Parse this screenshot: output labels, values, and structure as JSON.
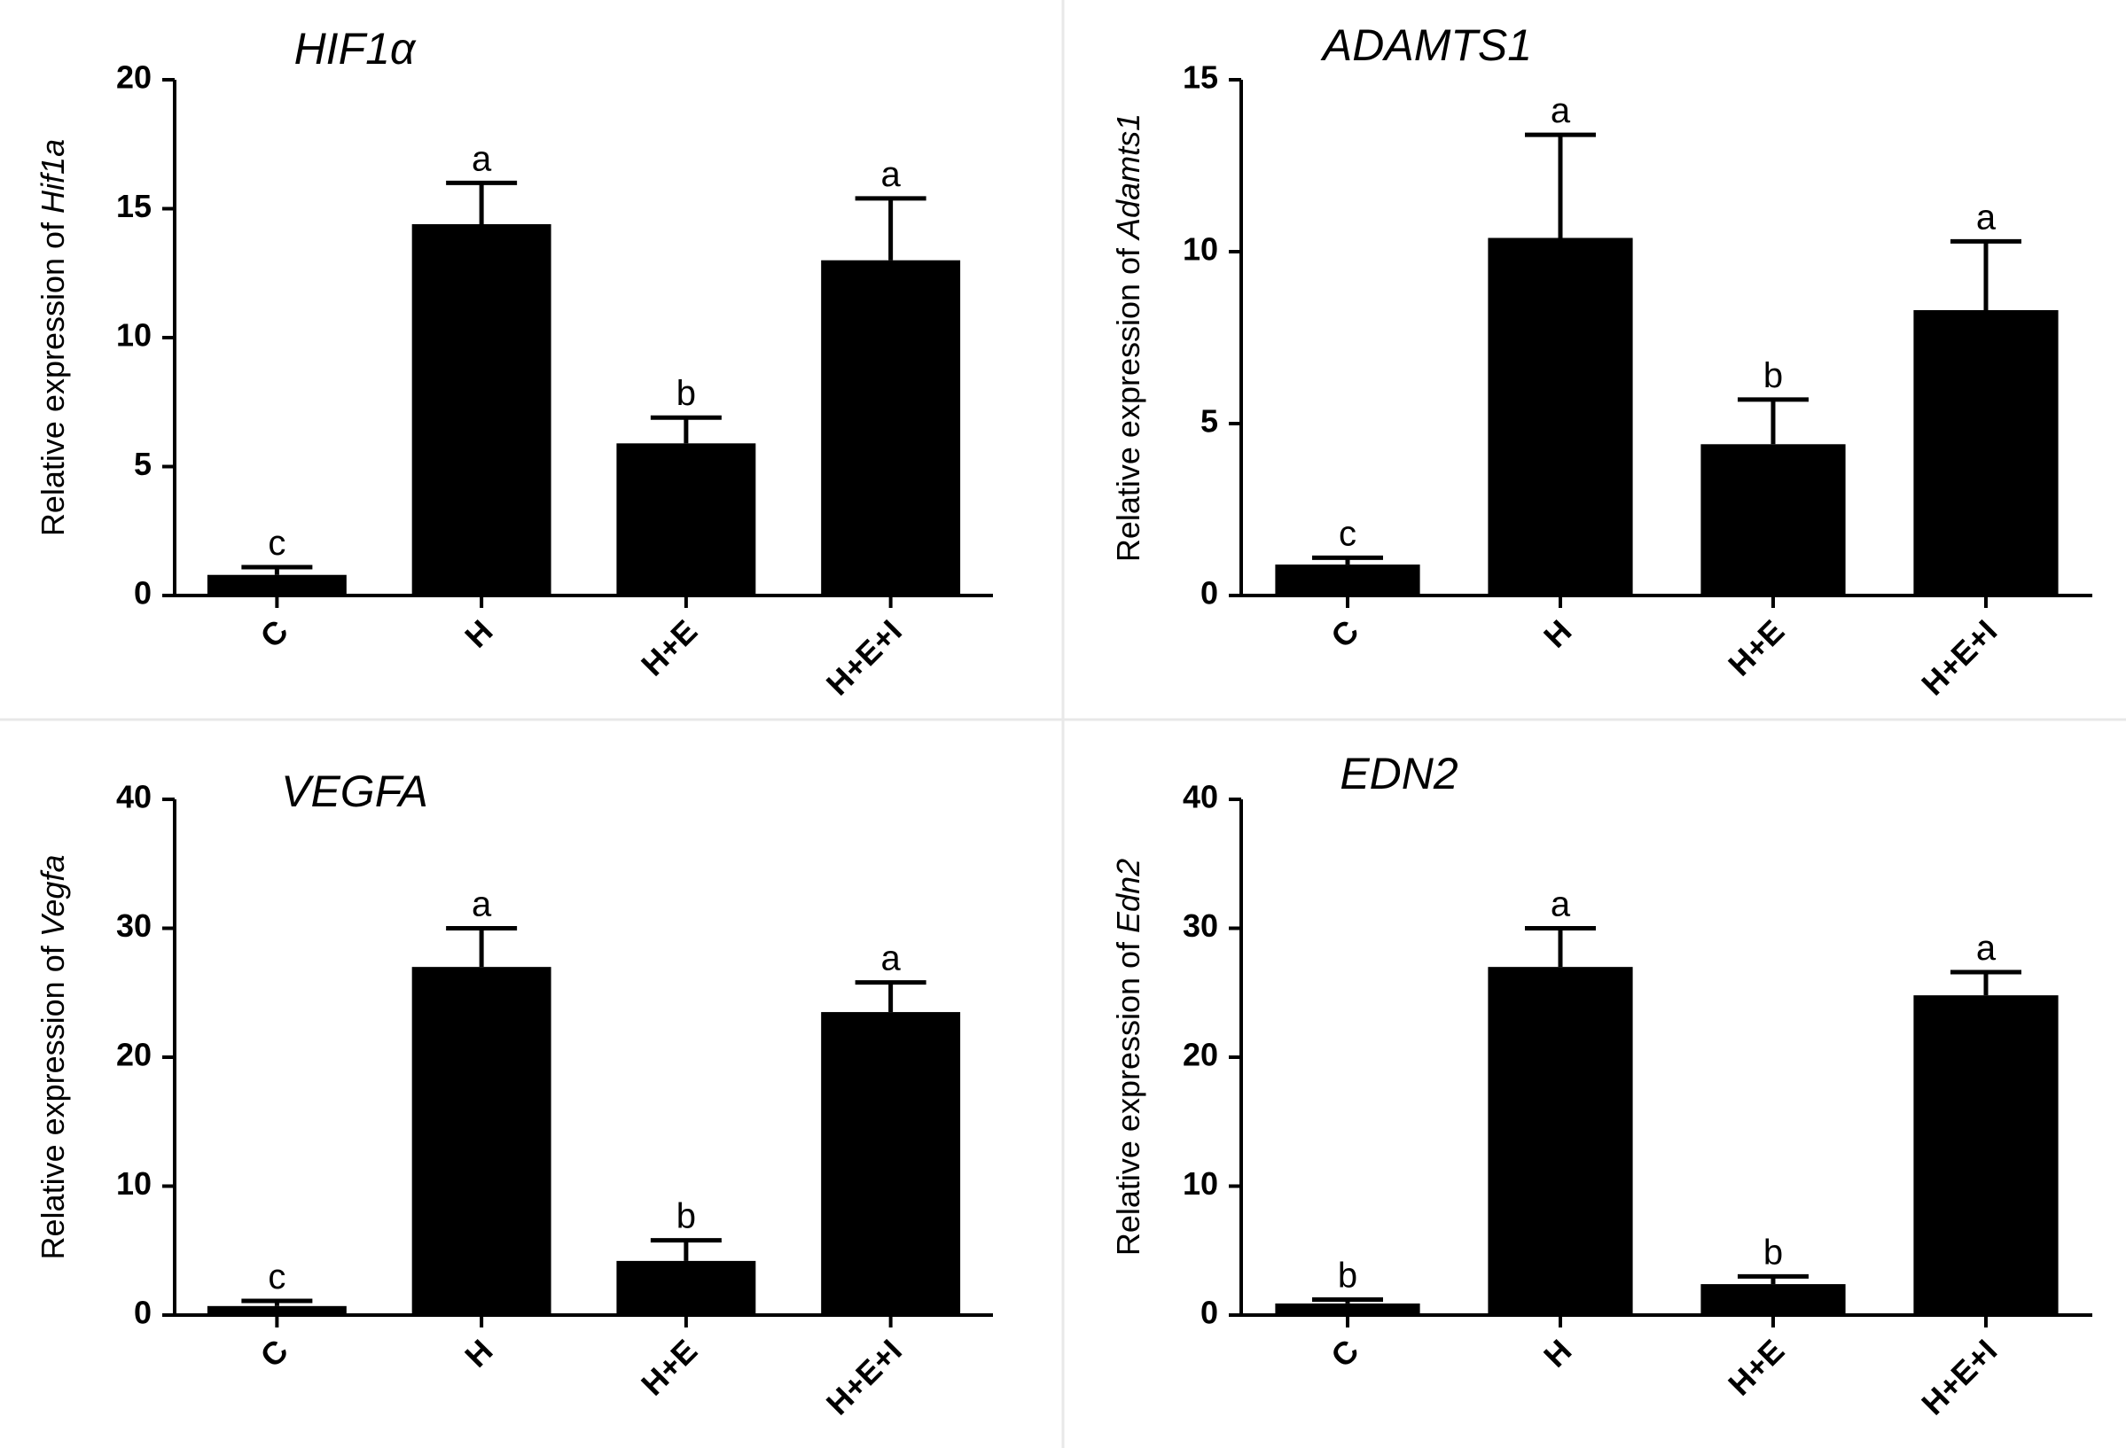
{
  "chart_data": [
    {
      "type": "bar",
      "title": "HIF1α",
      "ylabel_prefix": "Relative expression of ",
      "ylabel_gene": "Hif1a",
      "xlabel": "",
      "categories": [
        "C",
        "H",
        "H+E",
        "H+E+I"
      ],
      "values": [
        0.8,
        14.4,
        5.9,
        13.0
      ],
      "errors": [
        0.3,
        1.6,
        1.0,
        2.4
      ],
      "significance": [
        "c",
        "a",
        "b",
        "a"
      ],
      "ylim": [
        0,
        20
      ],
      "yticks": [
        "0",
        "5",
        "10",
        "15",
        "20"
      ],
      "bar_color": "#000000"
    },
    {
      "type": "bar",
      "title": "ADAMTS1",
      "ylabel_prefix": "Relative expression of ",
      "ylabel_gene": "Adamts1",
      "xlabel": "",
      "categories": [
        "C",
        "H",
        "H+E",
        "H+E+I"
      ],
      "values": [
        0.9,
        10.4,
        4.4,
        8.3
      ],
      "errors": [
        0.2,
        3.0,
        1.3,
        2.0
      ],
      "significance": [
        "c",
        "a",
        "b",
        "a"
      ],
      "ylim": [
        0,
        15
      ],
      "yticks": [
        "0",
        "5",
        "10",
        "15"
      ],
      "bar_color": "#000000"
    },
    {
      "type": "bar",
      "title": "VEGFA",
      "ylabel_prefix": "Relative expression of ",
      "ylabel_gene": "Vegfa",
      "xlabel": "",
      "categories": [
        "C",
        "H",
        "H+E",
        "H+E+I"
      ],
      "values": [
        0.7,
        27.0,
        4.2,
        23.5
      ],
      "errors": [
        0.4,
        3.0,
        1.6,
        2.3
      ],
      "significance": [
        "c",
        "a",
        "b",
        "a"
      ],
      "ylim": [
        0,
        40
      ],
      "yticks": [
        "0",
        "10",
        "20",
        "30",
        "40"
      ],
      "bar_color": "#000000"
    },
    {
      "type": "bar",
      "title": "EDN2",
      "ylabel_prefix": "Relative expression of ",
      "ylabel_gene": "Edn2",
      "xlabel": "",
      "categories": [
        "C",
        "H",
        "H+E",
        "H+E+I"
      ],
      "values": [
        0.9,
        27.0,
        2.4,
        24.8
      ],
      "errors": [
        0.3,
        3.0,
        0.6,
        1.8
      ],
      "significance": [
        "b",
        "a",
        "b",
        "a"
      ],
      "ylim": [
        0,
        40
      ],
      "yticks": [
        "0",
        "10",
        "20",
        "30",
        "40"
      ],
      "bar_color": "#000000"
    }
  ]
}
